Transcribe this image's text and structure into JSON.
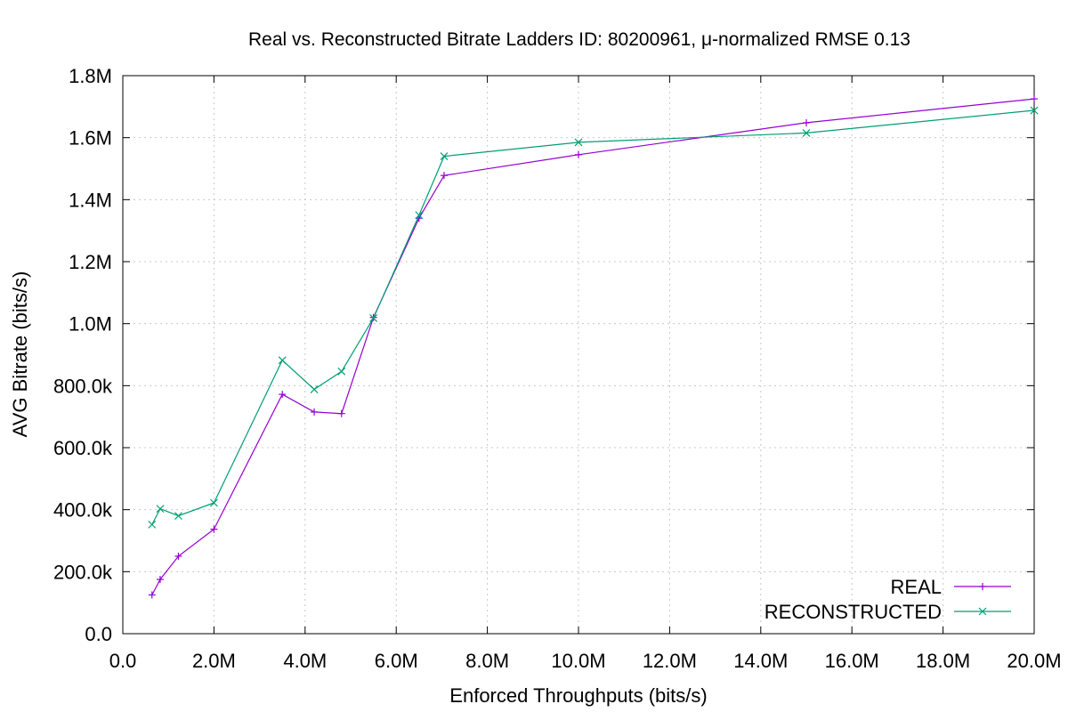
{
  "chart_data": {
    "type": "line",
    "title": "Real vs. Reconstructed Bitrate Ladders ID: 80200961, μ-normalized RMSE 0.13",
    "xlabel": "Enforced Throughputs (bits/s)",
    "ylabel": "AVG Bitrate (bits/s)",
    "xlim": [
      0,
      20000000
    ],
    "ylim": [
      0,
      1800000
    ],
    "x_ticks": [
      0,
      2000000,
      4000000,
      6000000,
      8000000,
      10000000,
      12000000,
      14000000,
      16000000,
      18000000,
      20000000
    ],
    "x_tick_labels": [
      "0.0",
      "2.0M",
      "4.0M",
      "6.0M",
      "8.0M",
      "10.0M",
      "12.0M",
      "14.0M",
      "16.0M",
      "18.0M",
      "20.0M"
    ],
    "y_ticks": [
      0,
      200000,
      400000,
      600000,
      800000,
      1000000,
      1200000,
      1400000,
      1600000,
      1800000
    ],
    "y_tick_labels": [
      "0.0",
      "200.0k",
      "400.0k",
      "600.0k",
      "800.0k",
      "1.0M",
      "1.2M",
      "1.4M",
      "1.6M",
      "1.8M"
    ],
    "grid": true,
    "legend_position": "bottom-right",
    "series": [
      {
        "name": "REAL",
        "color": "#9400d3",
        "marker": "plus",
        "x": [
          640000,
          820000,
          1220000,
          2000000,
          3500000,
          4200000,
          4800000,
          5500000,
          6500000,
          7050000,
          10000000,
          15000000,
          20000000
        ],
        "y": [
          125000,
          175000,
          250000,
          337000,
          772000,
          715000,
          710000,
          1020000,
          1340000,
          1478000,
          1545000,
          1648000,
          1725000
        ]
      },
      {
        "name": "RECONSTRUCTED",
        "color": "#009e73",
        "marker": "cross",
        "x": [
          640000,
          820000,
          1220000,
          2000000,
          3500000,
          4200000,
          4800000,
          5500000,
          6500000,
          7050000,
          10000000,
          15000000,
          20000000
        ],
        "y": [
          352000,
          403000,
          380000,
          422000,
          882000,
          788000,
          846000,
          1018000,
          1350000,
          1540000,
          1585000,
          1615000,
          1688000
        ]
      }
    ]
  }
}
